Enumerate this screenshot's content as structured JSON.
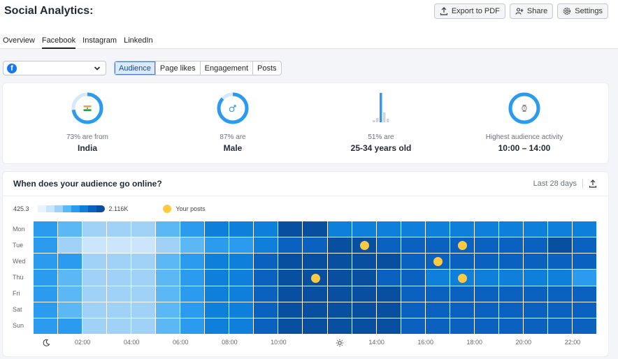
{
  "app": {
    "title": "Social Analytics:"
  },
  "toolbar": {
    "export_label": "Export to PDF",
    "share_label": "Share",
    "settings_label": "Settings"
  },
  "tabs": [
    {
      "label": "Overview",
      "active": false
    },
    {
      "label": "Facebook",
      "active": true
    },
    {
      "label": "Instagram",
      "active": false
    },
    {
      "label": "LinkedIn",
      "active": false
    }
  ],
  "filters": {
    "account_icon": "facebook-icon",
    "segments": [
      {
        "label": "Audience",
        "active": true
      },
      {
        "label": "Page likes",
        "active": false
      },
      {
        "label": "Engagement",
        "active": false
      },
      {
        "label": "Posts",
        "active": false
      }
    ]
  },
  "stats": [
    {
      "label": "73% are from",
      "value": "India",
      "percent": 73,
      "icon": "india-flag-icon"
    },
    {
      "label": "87% are",
      "value": "Male",
      "percent": 87,
      "icon": "male-symbol-icon"
    },
    {
      "label": "51% are",
      "value": "25-34 years old",
      "percent": 51,
      "icon": "age-bars-icon"
    },
    {
      "label": "Highest audience activity",
      "value": "10:00 – 14:00",
      "percent": 100,
      "icon": "clock-icon"
    }
  ],
  "activity": {
    "title": "When does your audience go online?",
    "period_label": "Last 28 days",
    "legend": {
      "min_label": "425.3",
      "max_label": "2.116K",
      "posts_label": "Your posts"
    },
    "colors": [
      "#e8f4fd",
      "#cbe6fb",
      "#a0d2f8",
      "#5cb7f5",
      "#2b9bf0",
      "#0f7fdc",
      "#0a61bf",
      "#084f9f"
    ],
    "days": [
      "Mon",
      "Tue",
      "Wed",
      "Thu",
      "Fri",
      "Sat",
      "Sun"
    ],
    "x_ticks": [
      "02:00",
      "04:00",
      "06:00",
      "08:00",
      "10:00",
      "14:00",
      "16:00",
      "18:00",
      "20:00",
      "22:00"
    ],
    "x_icons": {
      "night": "moon-icon",
      "noon": "sun-icon"
    },
    "levels": [
      [
        4,
        3,
        2,
        2,
        2,
        3,
        4,
        5,
        5,
        5,
        7,
        7,
        5,
        5,
        5,
        5,
        5,
        5,
        5,
        5,
        5,
        5,
        5
      ],
      [
        4,
        2,
        1,
        1,
        1,
        2,
        3,
        4,
        4,
        5,
        6,
        6,
        7,
        7,
        6,
        6,
        6,
        6,
        6,
        6,
        6,
        7,
        6
      ],
      [
        4,
        4,
        2,
        2,
        2,
        3,
        4,
        5,
        5,
        6,
        7,
        7,
        7,
        7,
        7,
        6,
        6,
        6,
        6,
        6,
        6,
        6,
        6
      ],
      [
        4,
        3,
        2,
        2,
        2,
        3,
        4,
        5,
        5,
        6,
        7,
        7,
        7,
        7,
        6,
        6,
        5,
        5,
        5,
        5,
        5,
        5,
        4
      ],
      [
        4,
        3,
        2,
        2,
        2,
        3,
        4,
        5,
        5,
        6,
        7,
        7,
        7,
        7,
        7,
        6,
        6,
        6,
        6,
        6,
        6,
        6,
        6
      ],
      [
        4,
        3,
        2,
        2,
        2,
        3,
        4,
        5,
        5,
        6,
        7,
        7,
        7,
        7,
        7,
        6,
        6,
        6,
        6,
        6,
        6,
        6,
        6
      ],
      [
        4,
        4,
        2,
        2,
        2,
        3,
        4,
        5,
        5,
        6,
        7,
        7,
        7,
        7,
        7,
        6,
        6,
        6,
        6,
        6,
        6,
        6,
        6
      ]
    ],
    "posts": [
      {
        "day": 1,
        "hour": 13.5
      },
      {
        "day": 1,
        "hour": 17.5
      },
      {
        "day": 2,
        "hour": 16.5
      },
      {
        "day": 3,
        "hour": 11.5
      },
      {
        "day": 3,
        "hour": 17.5
      }
    ]
  }
}
